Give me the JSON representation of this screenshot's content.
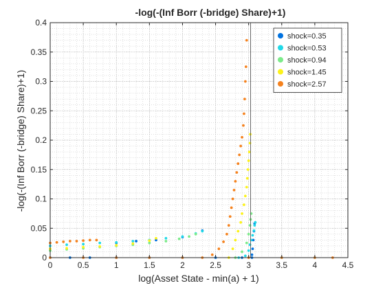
{
  "chart_data": {
    "type": "scatter",
    "title": "-log(-(Inf Borr (-bridge) Share)+1)",
    "xlabel": "log(Asset State - min(a) + 1)",
    "ylabel": "-log(-(Inf Borr (-bridge) Share)+1)",
    "xlim": [
      0,
      4.5
    ],
    "ylim": [
      0,
      0.4
    ],
    "xticks": [
      "0",
      "0.5",
      "1",
      "1.5",
      "2",
      "2.5",
      "3",
      "3.5",
      "4",
      "4.5"
    ],
    "yticks": [
      "0",
      "0.05",
      "0.1",
      "0.15",
      "0.2",
      "0.25",
      "0.3",
      "0.35",
      "0.4"
    ],
    "grid": "minor dotted",
    "legend_position": "top-right",
    "vertical_reference_line_x": 3.03,
    "series": [
      {
        "name": "shock=0.35",
        "color": "#0072e0",
        "points": [
          [
            0.0,
            0.0
          ],
          [
            0.3,
            0.0
          ],
          [
            0.6,
            0.0
          ],
          [
            1.0,
            0.0
          ],
          [
            1.5,
            0.0
          ],
          [
            2.0,
            0.0
          ],
          [
            2.5,
            0.0
          ],
          [
            2.9,
            0.0
          ],
          [
            3.05,
            0.0
          ],
          [
            3.05,
            0.005
          ],
          [
            3.06,
            0.015
          ],
          [
            3.07,
            0.03
          ],
          [
            3.08,
            0.045
          ],
          [
            3.09,
            0.058
          ],
          [
            1.0,
            0.025
          ],
          [
            1.3,
            0.028
          ],
          [
            1.6,
            0.03
          ],
          [
            2.0,
            0.035
          ],
          [
            2.3,
            0.046
          ]
        ]
      },
      {
        "name": "shock=0.53",
        "color": "#21d9e7",
        "points": [
          [
            0.0,
            0.02
          ],
          [
            0.25,
            0.022
          ],
          [
            0.5,
            0.023
          ],
          [
            0.75,
            0.025
          ],
          [
            1.0,
            0.026
          ],
          [
            1.25,
            0.028
          ],
          [
            1.5,
            0.03
          ],
          [
            1.75,
            0.033
          ],
          [
            2.0,
            0.036
          ],
          [
            2.2,
            0.041
          ],
          [
            2.3,
            0.045
          ],
          [
            2.85,
            0.0
          ],
          [
            2.95,
            0.003
          ],
          [
            3.0,
            0.012
          ],
          [
            3.02,
            0.022
          ],
          [
            3.04,
            0.03
          ],
          [
            3.06,
            0.038
          ],
          [
            3.08,
            0.046
          ],
          [
            3.09,
            0.055
          ],
          [
            3.1,
            0.06
          ],
          [
            3.5,
            0.0
          ],
          [
            4.0,
            0.0
          ]
        ]
      },
      {
        "name": "shock=0.94",
        "color": "#7ceb8a",
        "points": [
          [
            0.0,
            0.012
          ],
          [
            0.25,
            0.014
          ],
          [
            0.5,
            0.016
          ],
          [
            0.75,
            0.018
          ],
          [
            1.0,
            0.02
          ],
          [
            1.25,
            0.022
          ],
          [
            1.5,
            0.025
          ],
          [
            1.75,
            0.028
          ],
          [
            1.95,
            0.032
          ],
          [
            2.1,
            0.036
          ],
          [
            2.2,
            0.04
          ],
          [
            2.8,
            0.0
          ],
          [
            2.9,
            0.01
          ],
          [
            2.97,
            0.025
          ],
          [
            3.0,
            0.04
          ],
          [
            3.02,
            0.055
          ],
          [
            3.03,
            0.065
          ],
          [
            3.04,
            0.075
          ]
        ]
      },
      {
        "name": "shock=1.45",
        "color": "#fcf21a",
        "points": [
          [
            0.0,
            0.015
          ],
          [
            0.25,
            0.016
          ],
          [
            0.5,
            0.018
          ],
          [
            0.75,
            0.019
          ],
          [
            1.0,
            0.021
          ],
          [
            1.25,
            0.024
          ],
          [
            1.5,
            0.029
          ],
          [
            1.6,
            0.033
          ],
          [
            2.7,
            0.0
          ],
          [
            2.76,
            0.015
          ],
          [
            2.8,
            0.03
          ],
          [
            2.84,
            0.045
          ],
          [
            2.88,
            0.06
          ],
          [
            2.9,
            0.075
          ],
          [
            2.93,
            0.09
          ],
          [
            2.95,
            0.105
          ],
          [
            2.97,
            0.12
          ],
          [
            2.98,
            0.135
          ],
          [
            2.99,
            0.15
          ],
          [
            3.0,
            0.165
          ],
          [
            3.01,
            0.18
          ],
          [
            3.02,
            0.195
          ],
          [
            3.025,
            0.21
          ]
        ]
      },
      {
        "name": "shock=2.57",
        "color": "#f5821e",
        "points": [
          [
            0.0,
            0.025
          ],
          [
            0.1,
            0.026
          ],
          [
            0.2,
            0.027
          ],
          [
            0.3,
            0.028
          ],
          [
            0.4,
            0.028
          ],
          [
            0.5,
            0.029
          ],
          [
            0.6,
            0.03
          ],
          [
            0.7,
            0.03
          ],
          [
            0.0,
            0.0
          ],
          [
            0.5,
            0.0
          ],
          [
            1.0,
            0.0
          ],
          [
            1.5,
            0.0
          ],
          [
            2.0,
            0.0
          ],
          [
            2.3,
            0.0
          ],
          [
            2.45,
            0.005
          ],
          [
            2.55,
            0.015
          ],
          [
            2.62,
            0.027
          ],
          [
            2.67,
            0.04
          ],
          [
            2.7,
            0.055
          ],
          [
            2.72,
            0.07
          ],
          [
            2.74,
            0.085
          ],
          [
            2.76,
            0.1
          ],
          [
            2.78,
            0.115
          ],
          [
            2.8,
            0.13
          ],
          [
            2.82,
            0.145
          ],
          [
            2.84,
            0.16
          ],
          [
            2.86,
            0.175
          ],
          [
            2.88,
            0.19
          ],
          [
            2.9,
            0.205
          ],
          [
            2.92,
            0.225
          ],
          [
            2.93,
            0.245
          ],
          [
            2.94,
            0.27
          ],
          [
            2.95,
            0.3
          ],
          [
            2.96,
            0.325
          ],
          [
            2.97,
            0.37
          ],
          [
            3.0,
            0.0
          ],
          [
            3.5,
            0.0
          ],
          [
            4.0,
            0.0
          ],
          [
            4.27,
            0.0
          ]
        ]
      }
    ]
  }
}
